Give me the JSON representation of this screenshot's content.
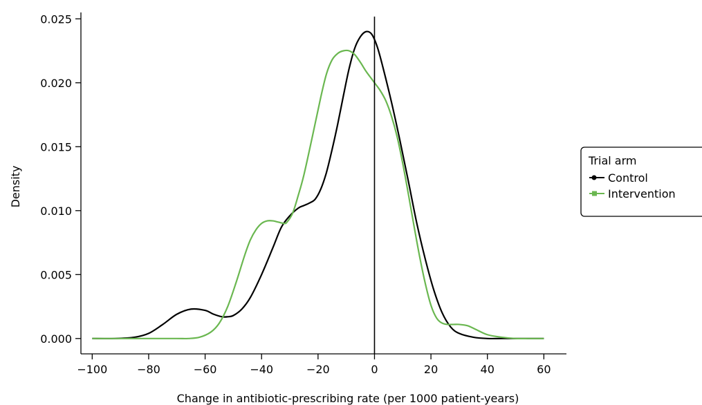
{
  "chart_data": {
    "type": "line",
    "title": "",
    "xlabel": "Change in antibiotic-prescribing rate (per 1000 patient-years)",
    "ylabel": "Density",
    "xlim": [
      -104,
      68
    ],
    "ylim": [
      -0.0012,
      0.0255
    ],
    "x_ticks": [
      -100,
      -80,
      -60,
      -40,
      -20,
      0,
      20,
      40,
      60
    ],
    "x_tick_labels": [
      "−100",
      "−80",
      "−60",
      "−40",
      "−20",
      "0",
      "20",
      "40",
      "60"
    ],
    "y_ticks": [
      0.0,
      0.005,
      0.01,
      0.015,
      0.02,
      0.025
    ],
    "y_tick_labels": [
      "0.000",
      "0.005",
      "0.010",
      "0.015",
      "0.020",
      "0.025"
    ],
    "grid": false,
    "reference_line_x": 0,
    "legend": {
      "title": "Trial arm",
      "position": "right"
    },
    "series": [
      {
        "name": "Control",
        "color": "#000000",
        "marker": "circle",
        "x": [
          -100,
          -92,
          -85,
          -80,
          -75,
          -70,
          -65,
          -60,
          -57,
          -54,
          -52,
          -50,
          -47,
          -44,
          -40,
          -36,
          -33,
          -30,
          -27,
          -25,
          -23,
          -21,
          -19,
          -17,
          -15,
          -13,
          -11,
          -9,
          -7,
          -5,
          -3,
          -1,
          1,
          3,
          6,
          9,
          12,
          15,
          18,
          21,
          24,
          27,
          30,
          35,
          40,
          45,
          50,
          55,
          60
        ],
        "y": [
          0.0,
          0.0,
          0.0001,
          0.0004,
          0.0011,
          0.0019,
          0.0023,
          0.0022,
          0.0019,
          0.0017,
          0.0017,
          0.0018,
          0.0023,
          0.0032,
          0.005,
          0.0071,
          0.0087,
          0.0096,
          0.0102,
          0.0104,
          0.0106,
          0.0109,
          0.0117,
          0.013,
          0.0148,
          0.0168,
          0.019,
          0.0211,
          0.0227,
          0.0236,
          0.024,
          0.0238,
          0.0228,
          0.0212,
          0.0185,
          0.0155,
          0.0123,
          0.009,
          0.0062,
          0.0038,
          0.002,
          0.0009,
          0.0004,
          0.0001,
          0.0,
          0.0,
          0.0,
          0.0,
          0.0
        ]
      },
      {
        "name": "Intervention",
        "color": "#6ab750",
        "marker": "square",
        "x": [
          -100,
          -90,
          -80,
          -70,
          -66,
          -62,
          -58,
          -55,
          -52,
          -49,
          -46,
          -44,
          -42,
          -40,
          -38,
          -36,
          -34,
          -32,
          -31,
          -29,
          -27,
          -25,
          -22,
          -19,
          -17,
          -15,
          -13,
          -11,
          -9,
          -7,
          -5,
          -3,
          -1,
          0,
          2,
          4,
          6,
          8,
          10,
          12,
          14,
          16,
          18,
          20,
          22,
          24,
          26,
          28,
          30,
          33,
          36,
          40,
          45,
          50,
          55,
          60
        ],
        "y": [
          0.0,
          0.0,
          0.0,
          0.0,
          0.0,
          0.0001,
          0.0005,
          0.0012,
          0.0025,
          0.0044,
          0.0065,
          0.0077,
          0.0085,
          0.009,
          0.0092,
          0.0092,
          0.0091,
          0.009,
          0.0091,
          0.0098,
          0.0112,
          0.0128,
          0.0158,
          0.0189,
          0.0207,
          0.0218,
          0.0223,
          0.0225,
          0.0225,
          0.0222,
          0.0216,
          0.0209,
          0.0203,
          0.02,
          0.0194,
          0.0186,
          0.0174,
          0.0158,
          0.0137,
          0.0113,
          0.0088,
          0.0064,
          0.0043,
          0.0026,
          0.0016,
          0.0012,
          0.0011,
          0.0011,
          0.0011,
          0.001,
          0.0007,
          0.0003,
          0.0001,
          0.0,
          0.0,
          0.0
        ]
      }
    ]
  }
}
